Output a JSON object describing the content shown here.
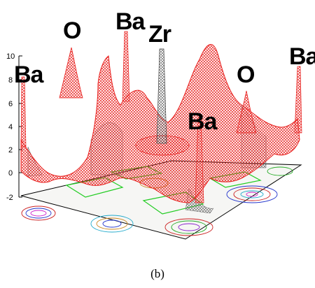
{
  "caption": "(b)",
  "z_axis": {
    "ticks": [
      "10",
      "8",
      "6",
      "4",
      "2",
      "0",
      "-2"
    ],
    "range": [
      -2,
      10
    ]
  },
  "atom_labels": [
    "O",
    "Ba",
    "Zr",
    "Ba",
    "O",
    "Ba",
    "Ba"
  ],
  "colors": {
    "surface": "#e8201e",
    "surface_back": "#555555",
    "contour_green": "#22cc22",
    "frame": "#000000"
  }
}
